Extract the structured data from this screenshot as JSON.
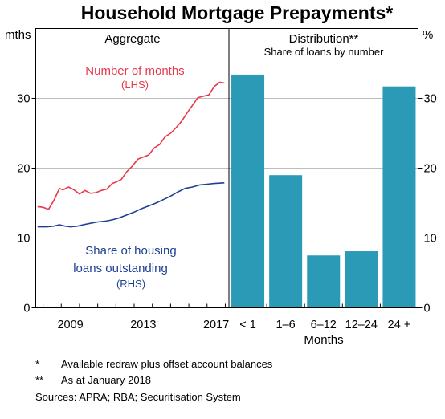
{
  "title": "Household Mortgage Prepayments*",
  "footnotes": [
    {
      "mark": "*",
      "text": "Available redraw plus offset account balances"
    },
    {
      "mark": "**",
      "text": "As at January 2018"
    }
  ],
  "sources": "Sources: APRA; RBA; Securitisation System",
  "colors": {
    "red": "#e8384a",
    "blue": "#1f3f94",
    "bar": "#2a9ab7"
  },
  "chart_data": [
    {
      "type": "line",
      "title": "Aggregate",
      "left_unit": "mths",
      "ylim": [
        0,
        40
      ],
      "yticks": [
        0,
        10,
        20,
        30
      ],
      "xlim": [
        2007.6,
        2018.2
      ],
      "xticks": [
        "2009",
        "2013",
        "2017"
      ],
      "series": [
        {
          "name": "Number of months",
          "axis_label": "(LHS)",
          "color": "#e8384a",
          "x": [
            2007.7,
            2008.0,
            2008.3,
            2008.6,
            2008.9,
            2009.1,
            2009.4,
            2009.7,
            2010.0,
            2010.3,
            2010.6,
            2010.9,
            2011.2,
            2011.5,
            2011.8,
            2012.0,
            2012.3,
            2012.6,
            2012.9,
            2013.2,
            2013.5,
            2013.8,
            2014.1,
            2014.4,
            2014.7,
            2015.0,
            2015.3,
            2015.6,
            2015.9,
            2016.2,
            2016.5,
            2016.8,
            2017.1,
            2017.4,
            2017.7,
            2017.95
          ],
          "y": [
            14.5,
            14.4,
            14.1,
            15.4,
            17.1,
            16.9,
            17.3,
            16.9,
            16.3,
            16.8,
            16.4,
            16.5,
            16.8,
            17.0,
            17.8,
            18.0,
            18.4,
            19.5,
            20.3,
            21.3,
            21.6,
            21.9,
            22.9,
            23.4,
            24.5,
            25.0,
            25.8,
            26.7,
            27.9,
            29.0,
            30.1,
            30.3,
            30.5,
            31.7,
            32.3,
            32.2
          ]
        },
        {
          "name": "Share of housing loans outstanding",
          "axis_label": "(RHS)",
          "color": "#1f3f94",
          "x": [
            2007.7,
            2008.2,
            2008.6,
            2008.9,
            2009.2,
            2009.5,
            2009.9,
            2010.2,
            2010.6,
            2011.0,
            2011.4,
            2011.8,
            2012.2,
            2012.6,
            2013.0,
            2013.4,
            2013.8,
            2014.2,
            2014.6,
            2015.0,
            2015.4,
            2015.8,
            2016.2,
            2016.6,
            2017.0,
            2017.4,
            2017.95
          ],
          "y": [
            11.6,
            11.6,
            11.7,
            11.9,
            11.7,
            11.6,
            11.7,
            11.9,
            12.1,
            12.3,
            12.4,
            12.6,
            12.9,
            13.3,
            13.7,
            14.2,
            14.6,
            15.0,
            15.5,
            16.0,
            16.6,
            17.1,
            17.3,
            17.6,
            17.7,
            17.8,
            17.9
          ]
        }
      ]
    },
    {
      "type": "bar",
      "title": "Distribution**",
      "subtitle": "Share of loans by number",
      "right_unit": "%",
      "xlabel": "Months",
      "ylim": [
        0,
        40
      ],
      "yticks": [
        0,
        10,
        20,
        30
      ],
      "categories": [
        "< 1",
        "1–6",
        "6–12",
        "12–24",
        "24 +"
      ],
      "values": [
        33.4,
        19.0,
        7.5,
        8.1,
        31.7
      ]
    }
  ]
}
